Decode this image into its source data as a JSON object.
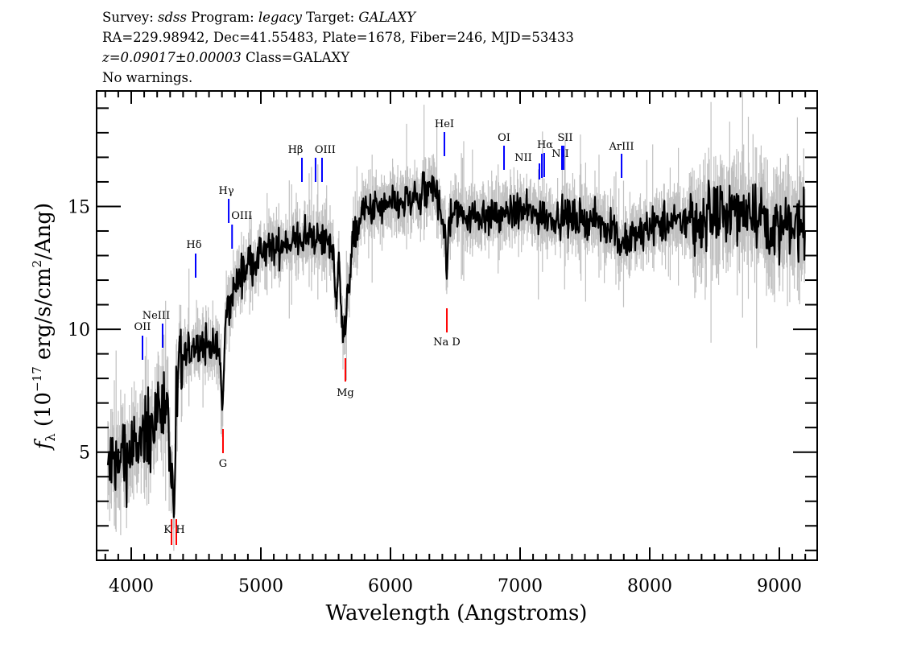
{
  "header": {
    "line1": {
      "survey_label": "Survey: ",
      "survey": "sdss",
      "program_label": " Program: ",
      "program": "legacy",
      "target_label": " Target: ",
      "target": "GALAXY"
    },
    "line2": "RA=229.98942, Dec=41.55483, Plate=1678, Fiber=246, MJD=53433",
    "line3": {
      "z": "z=0.09017±0.00003",
      "class": " Class=GALAXY"
    },
    "line4": "No warnings."
  },
  "chart_data": {
    "type": "line",
    "xlabel": "Wavelength (Angstroms)",
    "ylabel_main": "f",
    "ylabel_sub": "λ",
    "ylabel_rest1": " (10",
    "ylabel_exp": "−17",
    "ylabel_rest2": " erg/s/cm",
    "ylabel_exp2": "2",
    "ylabel_rest3": "/Ang)",
    "xlim": [
      3733,
      9292
    ],
    "ylim": [
      0.6,
      19.7
    ],
    "xticks": [
      4000,
      5000,
      6000,
      7000,
      8000,
      9000
    ],
    "yticks": [
      5,
      10,
      15
    ],
    "grid": false,
    "colors": {
      "flux": "#000000",
      "error": "#c0c0c0",
      "emission": "#0000ff",
      "absorption": "#ff0000"
    },
    "smoothed_flux": {
      "wavelength": [
        3820,
        3900,
        4000,
        4100,
        4200,
        4280,
        4310,
        4330,
        4350,
        4400,
        4500,
        4600,
        4680,
        4705,
        4730,
        4800,
        4900,
        5000,
        5100,
        5200,
        5300,
        5400,
        5500,
        5560,
        5585,
        5600,
        5640,
        5660,
        5700,
        5750,
        5800,
        6000,
        6200,
        6350,
        6420,
        6435,
        6450,
        6500,
        6800,
        7000,
        7200,
        7500,
        7700,
        7780,
        7850,
        8000,
        8300,
        8500,
        8800,
        8900,
        9000,
        9200
      ],
      "flux": [
        4.3,
        4.6,
        5.0,
        5.4,
        6.5,
        7.6,
        3.2,
        3.0,
        7.0,
        8.8,
        9.3,
        9.4,
        9.0,
        6.8,
        10.5,
        11.8,
        12.6,
        13.0,
        13.3,
        13.5,
        13.6,
        13.8,
        13.6,
        13.3,
        10.5,
        13.0,
        9.6,
        10.5,
        13.4,
        14.2,
        14.8,
        15.0,
        15.3,
        15.7,
        14.2,
        11.8,
        14.6,
        14.7,
        14.6,
        14.8,
        14.6,
        14.5,
        14.2,
        13.4,
        13.6,
        14.2,
        14.4,
        14.6,
        14.9,
        14.4,
        14.0,
        14.3
      ]
    },
    "lines": [
      {
        "name": "OII",
        "wavelength": 4087,
        "type": "emission"
      },
      {
        "name": "NeIII",
        "wavelength": 4242,
        "type": "emission"
      },
      {
        "name": "Hδ",
        "wavelength": 4497,
        "type": "emission"
      },
      {
        "name": "Hγ",
        "wavelength": 4752,
        "type": "emission"
      },
      {
        "name": "OIII",
        "wavelength": 4778,
        "type": "emission"
      },
      {
        "name": "Hβ",
        "wavelength": 5317,
        "type": "emission"
      },
      {
        "name": "OIII",
        "wavelength": 5422,
        "type": "emission"
      },
      {
        "name": "",
        "wavelength": 5472,
        "type": "emission"
      },
      {
        "name": "HeI",
        "wavelength": 6416,
        "type": "emission"
      },
      {
        "name": "OI",
        "wavelength": 6876,
        "type": "emission"
      },
      {
        "name": "NII",
        "wavelength": 7149,
        "type": "emission"
      },
      {
        "name": "Hα",
        "wavelength": 7168,
        "type": "emission"
      },
      {
        "name": "NII",
        "wavelength": 7186,
        "type": "emission"
      },
      {
        "name": "SII",
        "wavelength": 7323,
        "type": "emission"
      },
      {
        "name": "",
        "wavelength": 7336,
        "type": "emission"
      },
      {
        "name": "ArIII",
        "wavelength": 7783,
        "type": "emission"
      },
      {
        "name": "K",
        "wavelength": 4311,
        "type": "absorption"
      },
      {
        "name": "H",
        "wavelength": 4348,
        "type": "absorption"
      },
      {
        "name": "G",
        "wavelength": 4708,
        "type": "absorption"
      },
      {
        "name": "Mg",
        "wavelength": 5652,
        "type": "absorption"
      },
      {
        "name": "Na D",
        "wavelength": 6435,
        "type": "absorption"
      }
    ]
  }
}
